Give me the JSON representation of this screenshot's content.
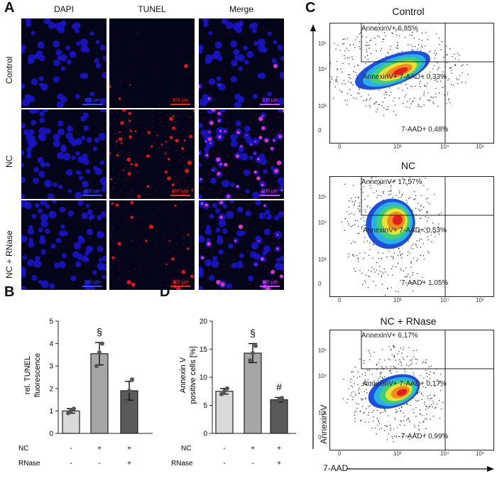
{
  "panel_letters": {
    "a": "A",
    "b": "B",
    "c": "C",
    "d": "D"
  },
  "panelA": {
    "columns": [
      "DAPI",
      "TUNEL",
      "Merge"
    ],
    "rows": [
      "Control",
      "NC",
      "NC + RNase"
    ],
    "scale_bar_label": "100 μm",
    "colors": {
      "dapi": "#1a14c8",
      "tunel": "#e0121a",
      "background": "#05051a",
      "scale_dapi": "#3b48ff",
      "scale_tunel": "#ff2020",
      "scale_merge": "#d040ff"
    }
  },
  "panelB": {
    "ylabel_line1": "rel. TUNEL",
    "ylabel_line2": "fluorescence",
    "yticks": [
      "0",
      "1",
      "2",
      "3",
      "4",
      "5"
    ],
    "rows": [
      {
        "label": "NC",
        "marks": [
          "-",
          "+",
          "+"
        ]
      },
      {
        "label": "RNase",
        "marks": [
          "-",
          "-",
          "+"
        ]
      }
    ],
    "significance": [
      "",
      "§",
      ""
    ]
  },
  "panelD": {
    "ylabel_line1": "Annexin V",
    "ylabel_line2": "positive cells [%]",
    "yticks": [
      "0",
      "5",
      "10",
      "15",
      "20"
    ],
    "rows": [
      {
        "label": "NC",
        "marks": [
          "-",
          "+",
          "+"
        ]
      },
      {
        "label": "RNase",
        "marks": [
          "-",
          "-",
          "+"
        ]
      }
    ],
    "significance": [
      "",
      "§",
      "#"
    ]
  },
  "panelC": {
    "x_axis_label": "7-AAD",
    "y_axis_label": "Annexin-V",
    "plots": [
      {
        "title": "Control",
        "q_annexin": "AnnexinV+ 6,85%",
        "q_double": "AnnexinV+ 7-AAD+ 0,33%",
        "q_7aad": "7-AAD+ 0,48%"
      },
      {
        "title": "NC",
        "q_annexin": "AnnexinV+ 17,57%",
        "q_double": "AnnexinV+ 7-AAD+ 0,53%",
        "q_7aad": "7-AAD+ 1,05%"
      },
      {
        "title": "NC + RNase",
        "q_annexin": "AnnexinV+ 6,17%",
        "q_double": "AnnexinV+ 7-AAD+ 0,17%",
        "q_7aad": "7-AAD+ 0,99%"
      }
    ],
    "x_ticks": [
      "0",
      "10³",
      "10⁴",
      "10⁵"
    ],
    "y_ticks": [
      "10⁵",
      "10⁴",
      "10³",
      "0"
    ],
    "heat_colors": [
      "#1f4fd8",
      "#2bb0e6",
      "#3fcf7a",
      "#e5e233",
      "#f08a1f",
      "#e0201a"
    ]
  },
  "chart_data": [
    {
      "type": "bar",
      "categories": [
        "Control",
        "NC",
        "NC + RNase"
      ],
      "values": [
        1.0,
        3.55,
        1.9
      ],
      "errors": [
        0.1,
        0.5,
        0.42
      ],
      "points": [
        [
          0.9,
          1.0,
          1.1
        ],
        [
          3.0,
          3.6,
          4.0
        ],
        [
          1.4,
          1.9,
          2.4
        ]
      ],
      "ylabel": "rel. TUNEL fluorescence",
      "ylim": [
        0,
        5
      ],
      "bar_colors": [
        "#d9d9d9",
        "#a6a6a6",
        "#5a5a5a"
      ]
    },
    {
      "type": "bar",
      "categories": [
        "Control",
        "NC",
        "NC + RNase"
      ],
      "values": [
        7.5,
        14.3,
        6.0
      ],
      "errors": [
        0.5,
        1.7,
        0.4
      ],
      "points": [
        [
          7.0,
          7.5,
          8.0
        ],
        [
          13.0,
          14.3,
          15.6
        ],
        [
          5.6,
          6.0,
          6.3
        ]
      ],
      "ylabel": "Annexin V positive cells [%]",
      "ylim": [
        0,
        20
      ],
      "bar_colors": [
        "#d9d9d9",
        "#a6a6a6",
        "#5a5a5a"
      ]
    }
  ]
}
